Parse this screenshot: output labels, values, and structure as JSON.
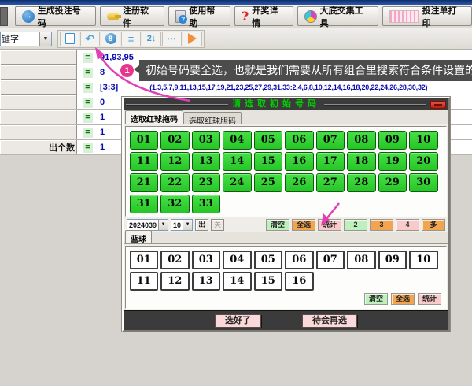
{
  "toolbar_main": {
    "buttons": [
      {
        "label": "生成投注号码",
        "icon": "circle-arrow-icon"
      },
      {
        "label": "注册软件",
        "icon": "key-icon"
      },
      {
        "label": "使用帮助",
        "icon": "help-book-icon"
      },
      {
        "label": "开奖详情",
        "icon": "red-question-icon"
      },
      {
        "label": "大底交集工具",
        "icon": "venn-pie-icon"
      },
      {
        "label": "投注单打印",
        "icon": "barcode-icon"
      }
    ]
  },
  "toolbar_edit": {
    "keyword_value": "键字",
    "icons": [
      "new-document-icon",
      "undo-icon",
      "eight-ball-icon",
      "layers-icon",
      "sort-icon",
      "more-dots-icon",
      "run-play-icon"
    ]
  },
  "left_panel": {
    "rows": [
      {
        "label": "",
        "op": "=",
        "value": "91,93,95"
      },
      {
        "label": "",
        "op": "=",
        "value": "8"
      },
      {
        "label": "",
        "op": "=",
        "value": "[3:3]",
        "list": "(1,3,5,7,9,11,13,15,17,19,21,23,25,27,29,31,33:2,4,6,8,10,12,14,16,18,20,22,24,26,28,30,32)"
      },
      {
        "label": "",
        "op": "=",
        "value": "0"
      },
      {
        "label": "",
        "op": "=",
        "value": "1"
      },
      {
        "label": "",
        "op": "=",
        "value": "1"
      },
      {
        "label": "出个数",
        "op": "=",
        "value": "1"
      }
    ]
  },
  "callout": {
    "step": "1",
    "text": "初始号码要全选，也就是我们需要从所有组合里搜索符合条件设置的"
  },
  "dialog": {
    "title": "请选取初始号码",
    "tabs": {
      "active": "选取红球拖码",
      "inactive": "选取红球胆码"
    },
    "red_balls": [
      "01",
      "02",
      "03",
      "04",
      "05",
      "06",
      "07",
      "08",
      "09",
      "10",
      "11",
      "12",
      "13",
      "14",
      "15",
      "16",
      "17",
      "18",
      "19",
      "20",
      "21",
      "22",
      "23",
      "24",
      "25",
      "26",
      "27",
      "28",
      "29",
      "30",
      "31",
      "32",
      "33"
    ],
    "period_value": "2024039",
    "count_value": "10",
    "out_button": "出",
    "close_small_button": "关",
    "red_actions": {
      "clear": "清空",
      "select_all": "全选",
      "stats": "统计",
      "n2": "2",
      "n3": "3",
      "n4": "4",
      "more": "多"
    },
    "blue_tab": "蓝球",
    "blue_balls": [
      "01",
      "02",
      "03",
      "04",
      "05",
      "06",
      "07",
      "08",
      "09",
      "10",
      "11",
      "12",
      "13",
      "14",
      "15",
      "16"
    ],
    "blue_actions": {
      "clear": "清空",
      "select_all": "全选",
      "stats": "统计"
    },
    "footer": {
      "ok": "选好了",
      "later": "待会再选"
    }
  },
  "colors": {
    "red_ball_green": "#2ed42e",
    "accent_pink_annotation": "#e33fb4",
    "dialog_title_green": "#00cf00",
    "action_green": "#bdf0bd",
    "action_orange": "#f2a44e",
    "action_pink": "#f8caca",
    "value_navy": "#0b0bab"
  }
}
